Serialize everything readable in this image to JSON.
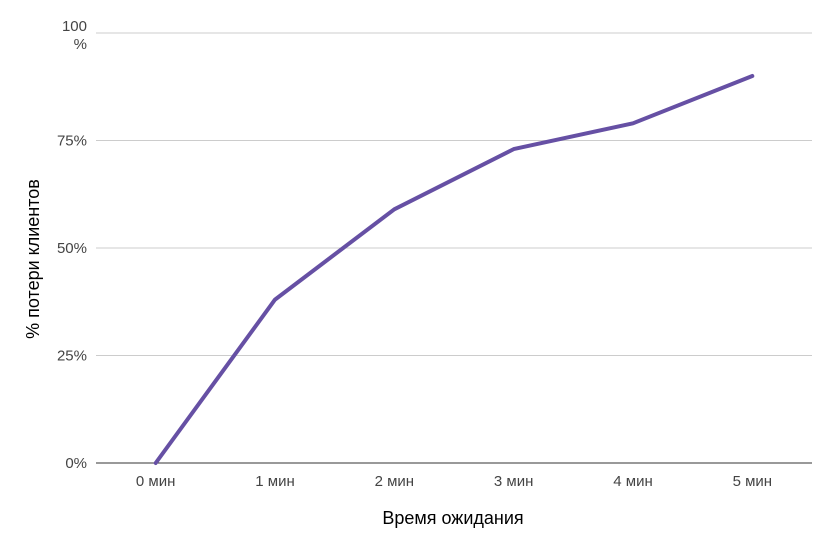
{
  "chart_data": {
    "type": "line",
    "title": "",
    "xlabel": "Время ожидания",
    "ylabel": "% потери клиентов",
    "categories": [
      "0 мин",
      "1 мин",
      "2 мин",
      "3 мин",
      "4 мин",
      "5 мин"
    ],
    "series": [
      {
        "values": [
          0,
          38,
          59,
          73,
          79,
          90
        ],
        "color": "#6650a4"
      }
    ],
    "ylim": [
      0,
      100
    ],
    "yticks": [
      {
        "value": 0,
        "label": "0%"
      },
      {
        "value": 25,
        "label": "25%"
      },
      {
        "value": 50,
        "label": "50%"
      },
      {
        "value": 75,
        "label": "75%"
      },
      {
        "value": 100,
        "label": "100\n%"
      }
    ],
    "grid": true,
    "legend": "none"
  }
}
